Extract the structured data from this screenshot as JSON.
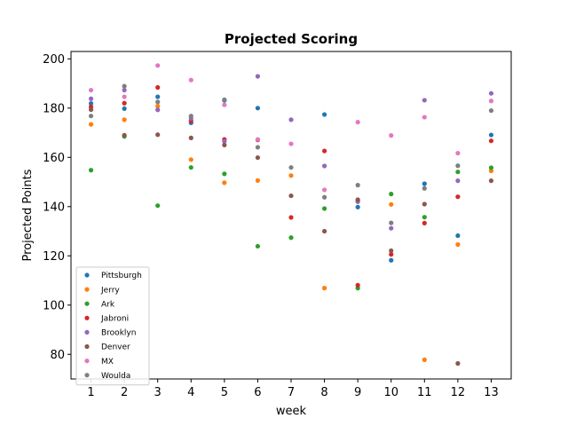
{
  "chart_data": {
    "type": "scatter",
    "title": "Projected Scoring",
    "xlabel": "week",
    "ylabel": "Projected Points",
    "x": [
      1,
      2,
      3,
      4,
      5,
      6,
      7,
      8,
      9,
      10,
      11,
      12,
      13
    ],
    "xlim": [
      0.4,
      13.6
    ],
    "ylim": [
      70,
      203
    ],
    "yticks": [
      80,
      100,
      120,
      140,
      160,
      180,
      200
    ],
    "grid": false,
    "legend_position": "lower-left",
    "series": [
      {
        "name": "Pittsburgh",
        "color": "#1f77b4",
        "values": [
          181.9,
          179.8,
          184.6,
          174.0,
          183.1,
          180.0,
          null,
          177.4,
          139.8,
          118.2,
          149.3,
          128.2,
          169.1
        ]
      },
      {
        "name": "Jerry",
        "color": "#ff7f0e",
        "values": [
          173.4,
          175.3,
          180.8,
          159.1,
          149.7,
          150.6,
          152.6,
          106.9,
          142.4,
          140.9,
          77.8,
          124.6,
          154.5
        ]
      },
      {
        "name": "Ark",
        "color": "#2ca02c",
        "values": [
          154.8,
          168.5,
          140.4,
          155.9,
          153.3,
          123.9,
          127.4,
          139.2,
          106.9,
          145.1,
          135.7,
          154.1,
          155.8
        ]
      },
      {
        "name": "Jabroni",
        "color": "#d62728",
        "values": [
          180.5,
          182.0,
          188.4,
          174.8,
          167.3,
          167.1,
          135.6,
          162.6,
          108.1,
          120.6,
          133.3,
          144.0,
          166.7
        ]
      },
      {
        "name": "Brooklyn",
        "color": "#9467bd",
        "values": [
          183.8,
          187.3,
          179.3,
          175.8,
          166.5,
          192.9,
          175.3,
          156.5,
          142.0,
          131.2,
          183.2,
          150.5,
          186.0
        ]
      },
      {
        "name": "Denver",
        "color": "#8c564b",
        "values": [
          179.4,
          169.0,
          169.2,
          167.9,
          165.0,
          159.9,
          144.4,
          130.0,
          142.8,
          122.1,
          141.0,
          76.3,
          150.5
        ]
      },
      {
        "name": "MX",
        "color": "#e377c2",
        "values": [
          187.3,
          184.6,
          197.3,
          191.4,
          181.3,
          167.3,
          165.5,
          146.8,
          174.3,
          168.9,
          176.3,
          161.7,
          182.9
        ]
      },
      {
        "name": "Woulda",
        "color": "#7f7f7f",
        "values": [
          176.8,
          188.9,
          182.5,
          176.8,
          183.4,
          164.1,
          155.9,
          143.8,
          148.7,
          133.4,
          147.4,
          156.6,
          179.0
        ]
      }
    ]
  }
}
